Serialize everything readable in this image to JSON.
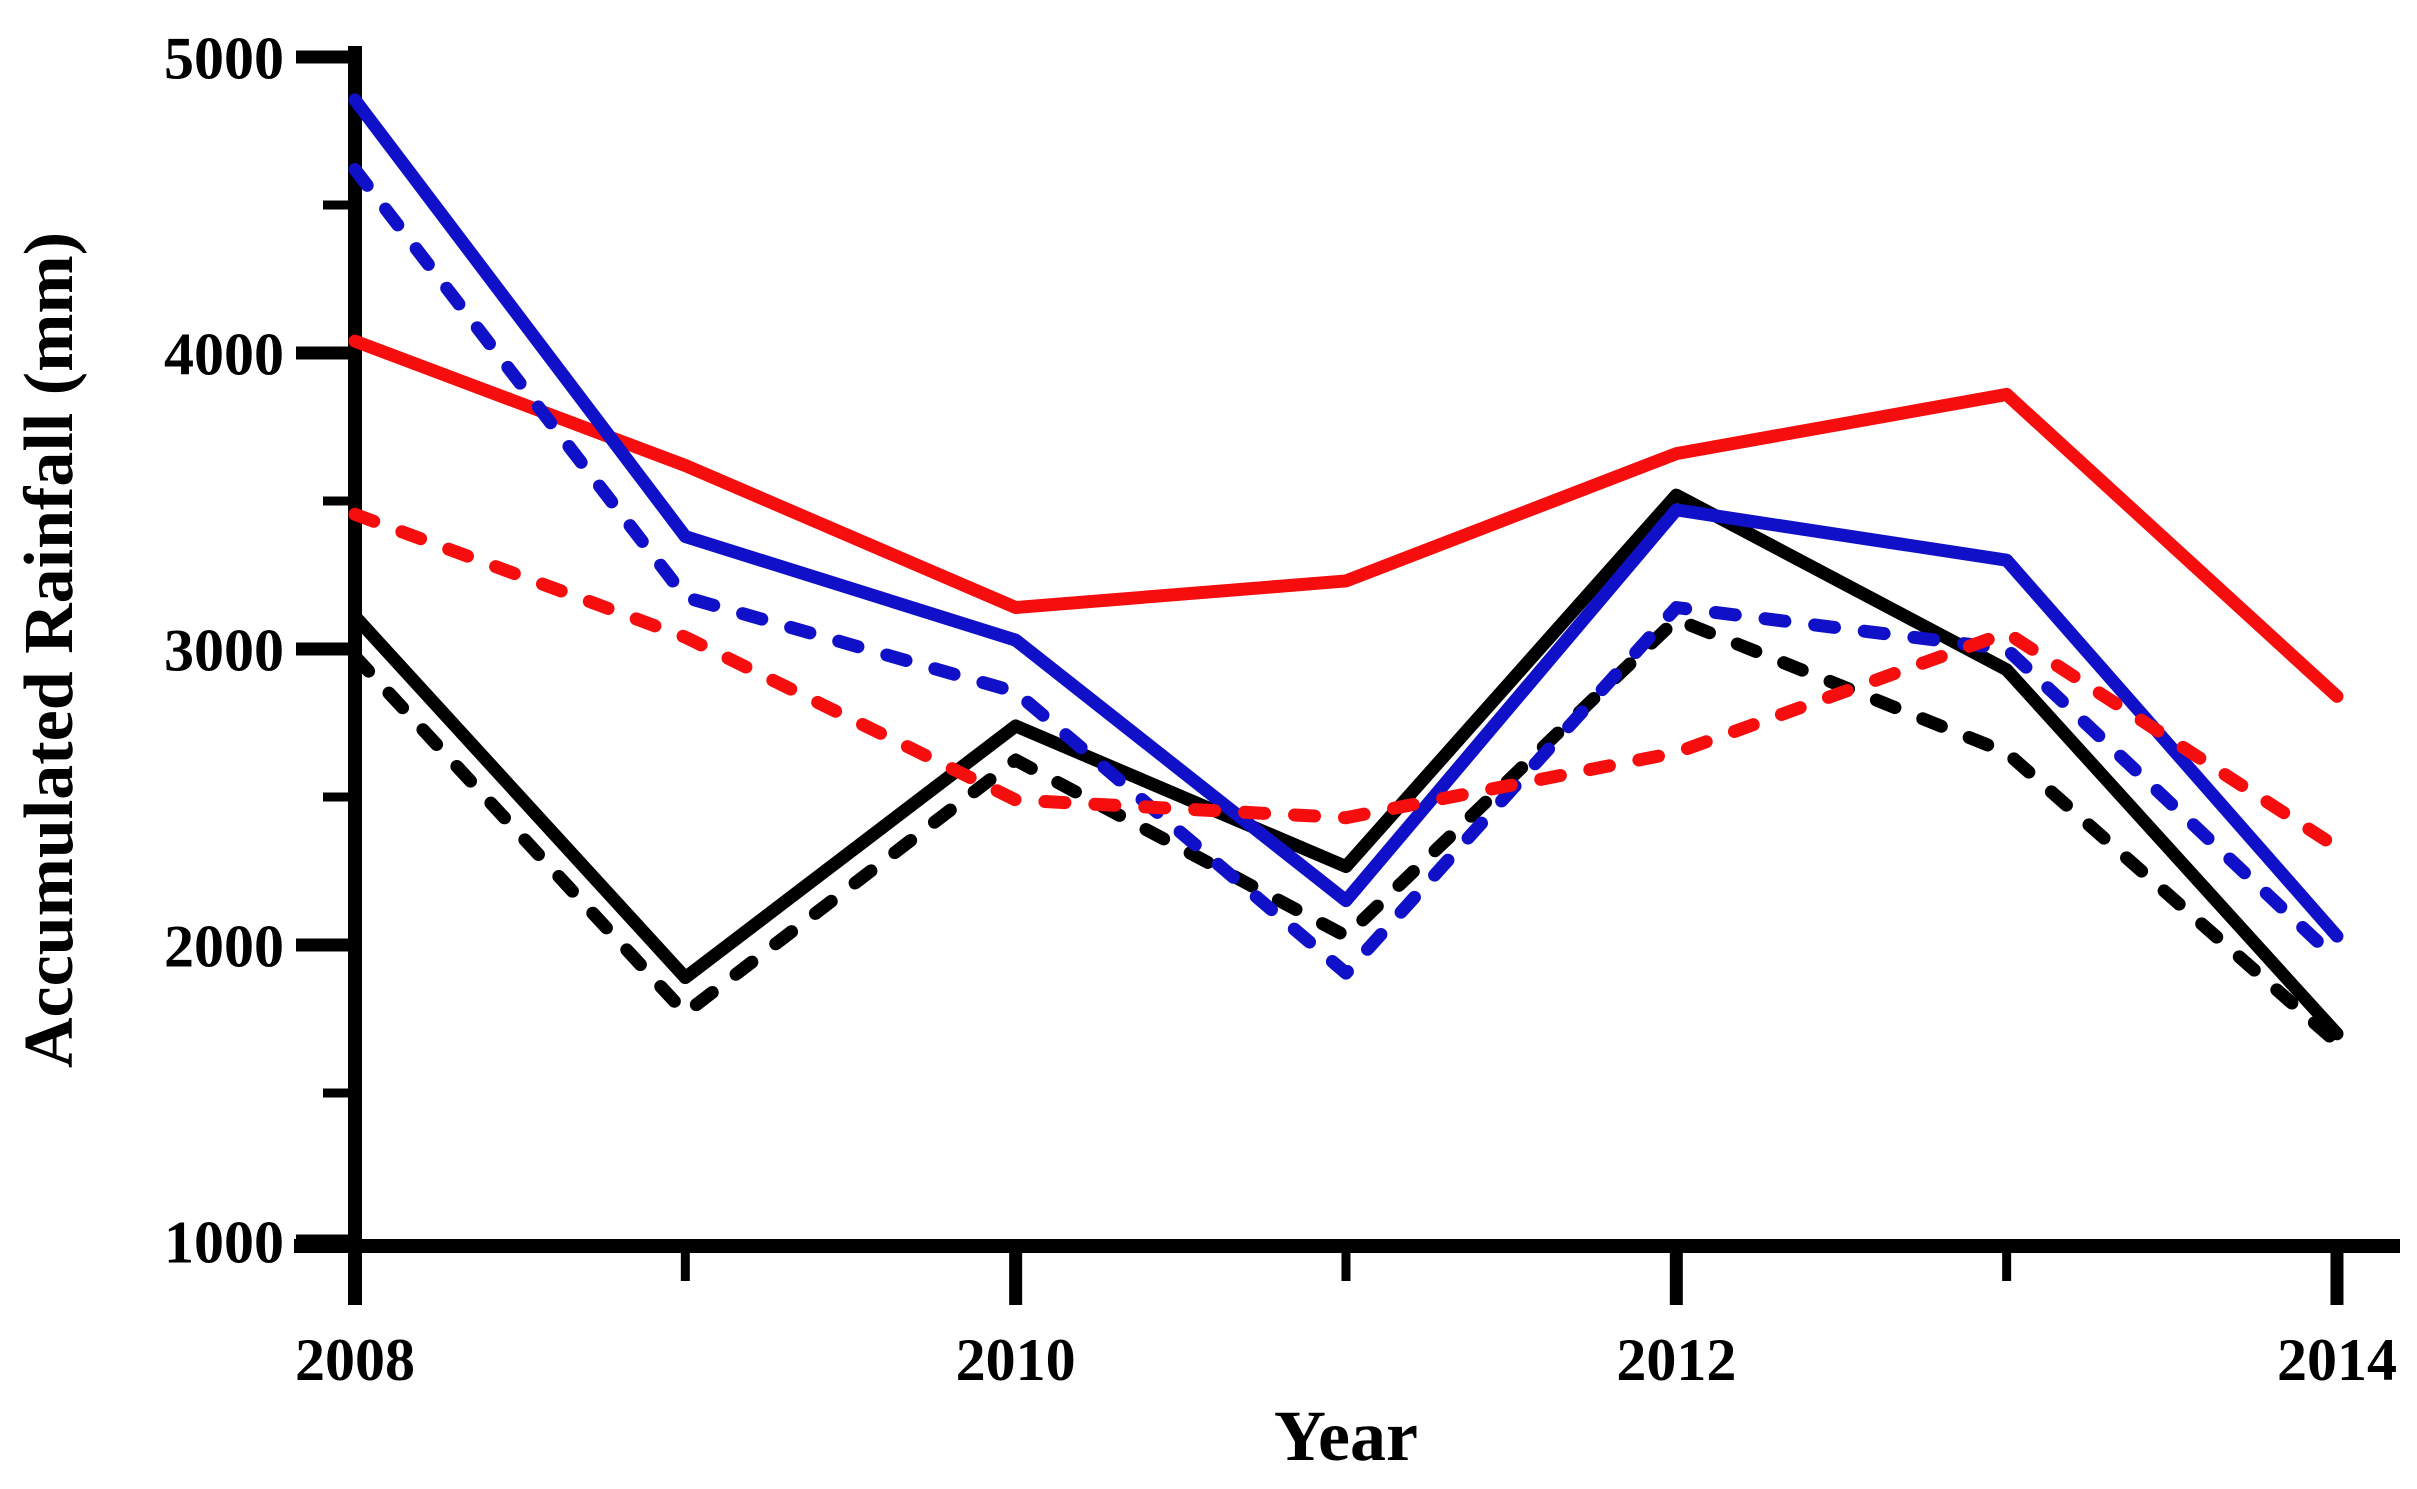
{
  "figure": {
    "background_color": "#ffffff",
    "axis_color": "#000000"
  },
  "chart_data": {
    "type": "line",
    "title": "",
    "xlabel": "Year",
    "ylabel": "Accumulated Rainfall (mm)",
    "x": [
      2008,
      2009,
      2010,
      2011,
      2012,
      2013,
      2014
    ],
    "xlim": [
      2008,
      2014
    ],
    "ylim": [
      1000,
      5000
    ],
    "x_major_ticks": [
      2008,
      2010,
      2012,
      2014
    ],
    "x_minor_ticks": [
      2009,
      2011,
      2013
    ],
    "y_major_ticks": [
      5000,
      4000,
      3000,
      2000,
      1000
    ],
    "y_minor_ticks": [
      4500,
      3500,
      2500,
      1500
    ],
    "grid": false,
    "legend_position": "none",
    "series": [
      {
        "name": "black-solid",
        "color": "#000000",
        "line_style": "solid",
        "values": [
          3110,
          1890,
          2740,
          2265,
          3520,
          2930,
          1700
        ]
      },
      {
        "name": "red-solid",
        "color": "#f60d0d",
        "line_style": "solid",
        "values": [
          4040,
          3620,
          3140,
          3230,
          3660,
          3860,
          2840
        ]
      },
      {
        "name": "blue-solid",
        "color": "#1010c8",
        "line_style": "solid",
        "values": [
          4855,
          3380,
          3030,
          2150,
          3470,
          3300,
          2030
        ]
      },
      {
        "name": "black-dashed",
        "color": "#000000",
        "line_style": "dashed",
        "values": [
          2975,
          1770,
          2625,
          2030,
          3100,
          2650,
          1670
        ]
      },
      {
        "name": "blue-dashed",
        "color": "#1010c8",
        "line_style": "dashed",
        "values": [
          4620,
          3175,
          2855,
          1905,
          3140,
          3000,
          1950
        ]
      },
      {
        "name": "red-dashed",
        "color": "#f60d0d",
        "line_style": "dashed",
        "values": [
          3455,
          3040,
          2490,
          2430,
          2650,
          3055,
          2330
        ]
      }
    ]
  }
}
